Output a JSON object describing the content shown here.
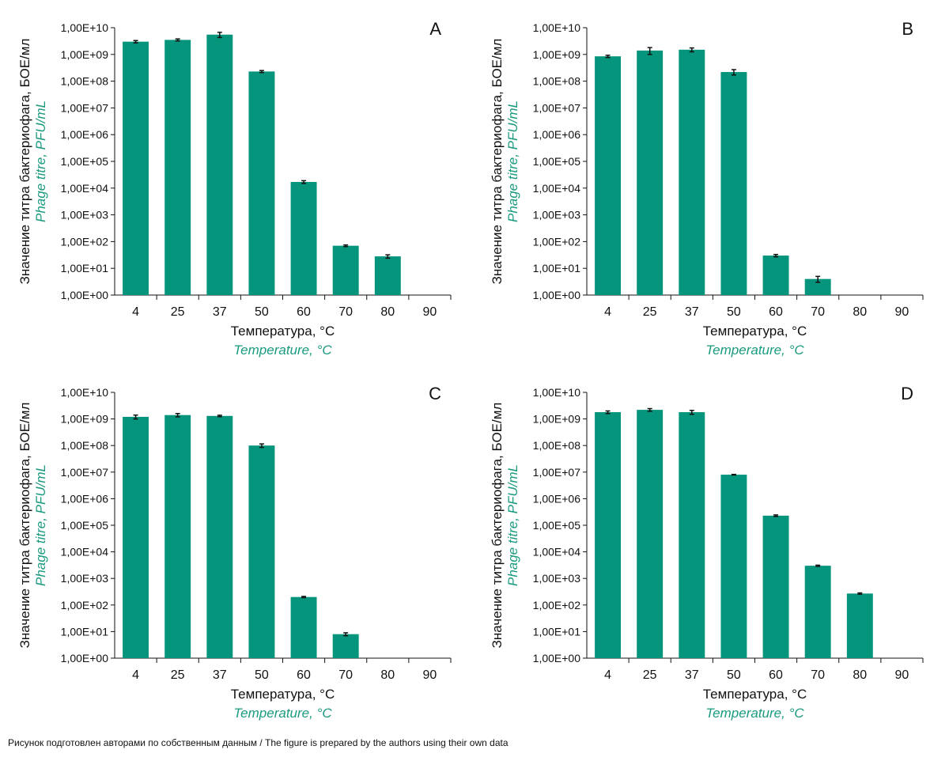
{
  "footer": "Рисунок подготовлен авторами по собственным данным / The figure is prepared by the authors using their own data",
  "colors": {
    "bar": "#05957c",
    "accent_text": "#1a9a7f",
    "error": "#111111"
  },
  "chart_data": [
    {
      "type": "bar",
      "panel": "A",
      "scale": "log",
      "ylim": [
        1,
        10000000000
      ],
      "ytick_labels": [
        "1,00E+00",
        "1,00E+01",
        "1,00E+02",
        "1,00E+03",
        "1,00E+04",
        "1,00E+05",
        "1,00E+06",
        "1,00E+07",
        "1,00E+08",
        "1,00E+09",
        "1,00E+10"
      ],
      "categories": [
        "4",
        "25",
        "37",
        "50",
        "60",
        "70",
        "80",
        "90"
      ],
      "values": [
        3000000000,
        3500000000,
        5500000000,
        230000000,
        17000,
        70,
        28,
        null
      ],
      "errors": [
        300000000,
        300000000,
        1200000000,
        20000000,
        2000,
        5,
        4,
        null
      ],
      "xlabel": "Температура, °C",
      "xlabel_en": "Temperature, °C",
      "ylabel": "Значение титра бактериофага, БОЕ/мл",
      "ylabel_en": "Phage titre, PFU/mL"
    },
    {
      "type": "bar",
      "panel": "B",
      "scale": "log",
      "ylim": [
        1,
        10000000000
      ],
      "ytick_labels": [
        "1,00E+00",
        "1,00E+01",
        "1,00E+02",
        "1,00E+03",
        "1,00E+04",
        "1,00E+05",
        "1,00E+06",
        "1,00E+07",
        "1,00E+08",
        "1,00E+09",
        "1,00E+10"
      ],
      "categories": [
        "4",
        "25",
        "37",
        "50",
        "60",
        "70",
        "80",
        "90"
      ],
      "values": [
        850000000,
        1400000000,
        1500000000,
        220000000,
        30,
        4,
        null,
        null
      ],
      "errors": [
        80000000,
        400000000,
        250000000,
        50000000,
        3,
        1,
        null,
        null
      ],
      "xlabel": "Температура, °C",
      "xlabel_en": "Temperature, °C",
      "ylabel": "Значение титра бактериофага, БОЕ/мл",
      "ylabel_en": "Phage titre, PFU/mL"
    },
    {
      "type": "bar",
      "panel": "C",
      "scale": "log",
      "ylim": [
        1,
        10000000000
      ],
      "ytick_labels": [
        "1,00E+00",
        "1,00E+01",
        "1,00E+02",
        "1,00E+03",
        "1,00E+04",
        "1,00E+05",
        "1,00E+06",
        "1,00E+07",
        "1,00E+08",
        "1,00E+09",
        "1,00E+10"
      ],
      "categories": [
        "4",
        "25",
        "37",
        "50",
        "60",
        "70",
        "80",
        "90"
      ],
      "values": [
        1200000000,
        1400000000,
        1300000000,
        100000000,
        200,
        8,
        null,
        null
      ],
      "errors": [
        200000000,
        200000000,
        80000000,
        15000000,
        10,
        1,
        null,
        null
      ],
      "xlabel": "Температура, °C",
      "xlabel_en": "Temperature, °C",
      "ylabel": "Значение титра бактериофага, БОЕ/мл",
      "ylabel_en": "Phage titre, PFU/mL"
    },
    {
      "type": "bar",
      "panel": "D",
      "scale": "log",
      "ylim": [
        1,
        10000000000
      ],
      "ytick_labels": [
        "1,00E+00",
        "1,00E+01",
        "1,00E+02",
        "1,00E+03",
        "1,00E+04",
        "1,00E+05",
        "1,00E+06",
        "1,00E+07",
        "1,00E+08",
        "1,00E+09",
        "1,00E+10"
      ],
      "categories": [
        "4",
        "25",
        "37",
        "50",
        "60",
        "70",
        "80",
        "90"
      ],
      "values": [
        1800000000,
        2200000000,
        1800000000,
        8000000,
        230000,
        3000,
        270,
        null
      ],
      "errors": [
        200000000,
        250000000,
        300000000,
        200000,
        15000,
        150,
        15,
        null
      ],
      "xlabel": "Температура, °C",
      "xlabel_en": "Temperature, °C",
      "ylabel": "Значение титра бактериофага, БОЕ/мл",
      "ylabel_en": "Phage titre, PFU/mL"
    }
  ]
}
